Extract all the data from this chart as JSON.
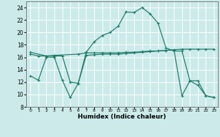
{
  "xlabel": "Humidex (Indice chaleur)",
  "bg_color": "#cceaea",
  "grid_color": "#ffffff",
  "line_color": "#1a7a6a",
  "x_ticks": [
    0,
    1,
    2,
    3,
    4,
    5,
    6,
    7,
    8,
    9,
    10,
    11,
    12,
    13,
    14,
    15,
    16,
    17,
    18,
    19,
    20,
    21,
    22,
    23
  ],
  "ylim": [
    8,
    25
  ],
  "xlim": [
    -0.5,
    23.5
  ],
  "y_ticks": [
    8,
    10,
    12,
    14,
    16,
    18,
    20,
    22,
    24
  ],
  "line1_x": [
    0,
    1,
    2,
    3,
    4,
    5,
    6,
    7,
    8,
    9,
    10,
    11,
    12,
    13,
    14,
    15,
    16,
    17,
    18,
    19,
    20,
    21,
    22,
    23
  ],
  "line1_y": [
    13,
    12.3,
    16,
    16,
    12.3,
    9.5,
    11.8,
    16.8,
    18.5,
    19.5,
    20,
    21,
    23.3,
    23.2,
    24,
    23,
    21.5,
    17.5,
    17,
    17,
    12.2,
    11.5,
    9.8,
    9.5
  ],
  "line2_x": [
    0,
    2,
    3,
    6,
    7,
    8,
    9,
    10,
    11,
    12,
    13,
    14,
    15,
    16,
    17,
    18,
    19,
    20,
    21,
    22,
    23
  ],
  "line2_y": [
    16.8,
    16.2,
    16.3,
    16.5,
    16.7,
    16.7,
    16.7,
    16.7,
    16.7,
    16.8,
    16.8,
    16.9,
    17.0,
    17.0,
    17.1,
    17.2,
    17.3,
    17.3,
    17.3,
    17.3,
    17.3
  ],
  "line3_x": [
    0,
    1,
    2,
    3,
    4,
    5,
    6,
    7,
    8,
    9,
    10,
    11,
    12,
    13,
    14,
    15,
    16,
    17,
    18,
    19,
    20,
    21,
    22,
    23
  ],
  "line3_y": [
    16.5,
    16.2,
    16.2,
    16.2,
    16.2,
    12.0,
    11.8,
    16.3,
    16.4,
    16.5,
    16.5,
    16.5,
    16.6,
    16.7,
    16.8,
    16.9,
    17.0,
    17.1,
    17.2,
    9.8,
    12.2,
    12.2,
    9.8,
    9.5
  ]
}
